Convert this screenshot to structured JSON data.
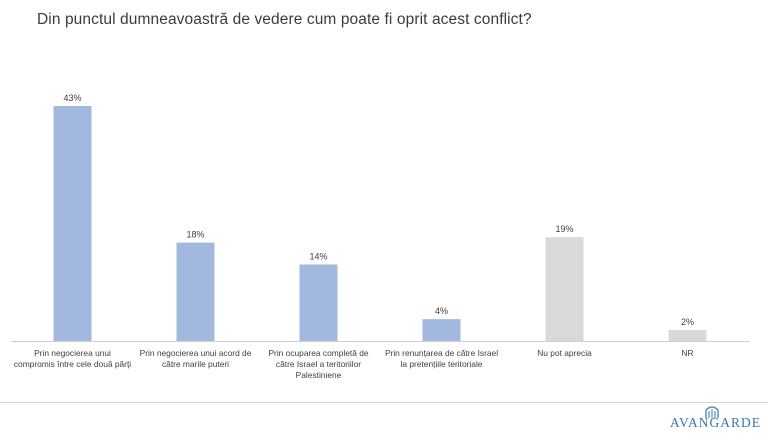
{
  "title": "Din punctul dumneavoastră de vedere cum poate fi oprit acest conflict?",
  "colors": {
    "blue": "#a3b8df",
    "gray": "#d9d9d9",
    "axis": "#d0d0d0",
    "brand": "#3a77a8"
  },
  "logo": {
    "text": "AVANGARDE",
    "icon": "building-logo-icon"
  },
  "chart_data": {
    "type": "bar",
    "title": "Din punctul dumneavoastră de vedere cum poate fi oprit acest conflict?",
    "categories": [
      "Prin negocierea unui compromis între cele două părți",
      "Prin negocierea unui acord de către marile puteri",
      "Prin ocuparea completă de către Israel a teritoriilor Palestiniene",
      "Prin renunțarea de către Israel la pretențiile teritoriale",
      "Nu pot aprecia",
      "NR"
    ],
    "values": [
      43,
      18,
      14,
      4,
      19,
      2
    ],
    "value_labels": [
      "43%",
      "18%",
      "14%",
      "4%",
      "19%",
      "2%"
    ],
    "bar_colors": [
      "#a3b8df",
      "#a3b8df",
      "#a3b8df",
      "#a3b8df",
      "#d9d9d9",
      "#d9d9d9"
    ],
    "xlabel": "",
    "ylabel": "",
    "ylim": [
      0,
      45
    ],
    "grid": false,
    "legend": "none"
  }
}
